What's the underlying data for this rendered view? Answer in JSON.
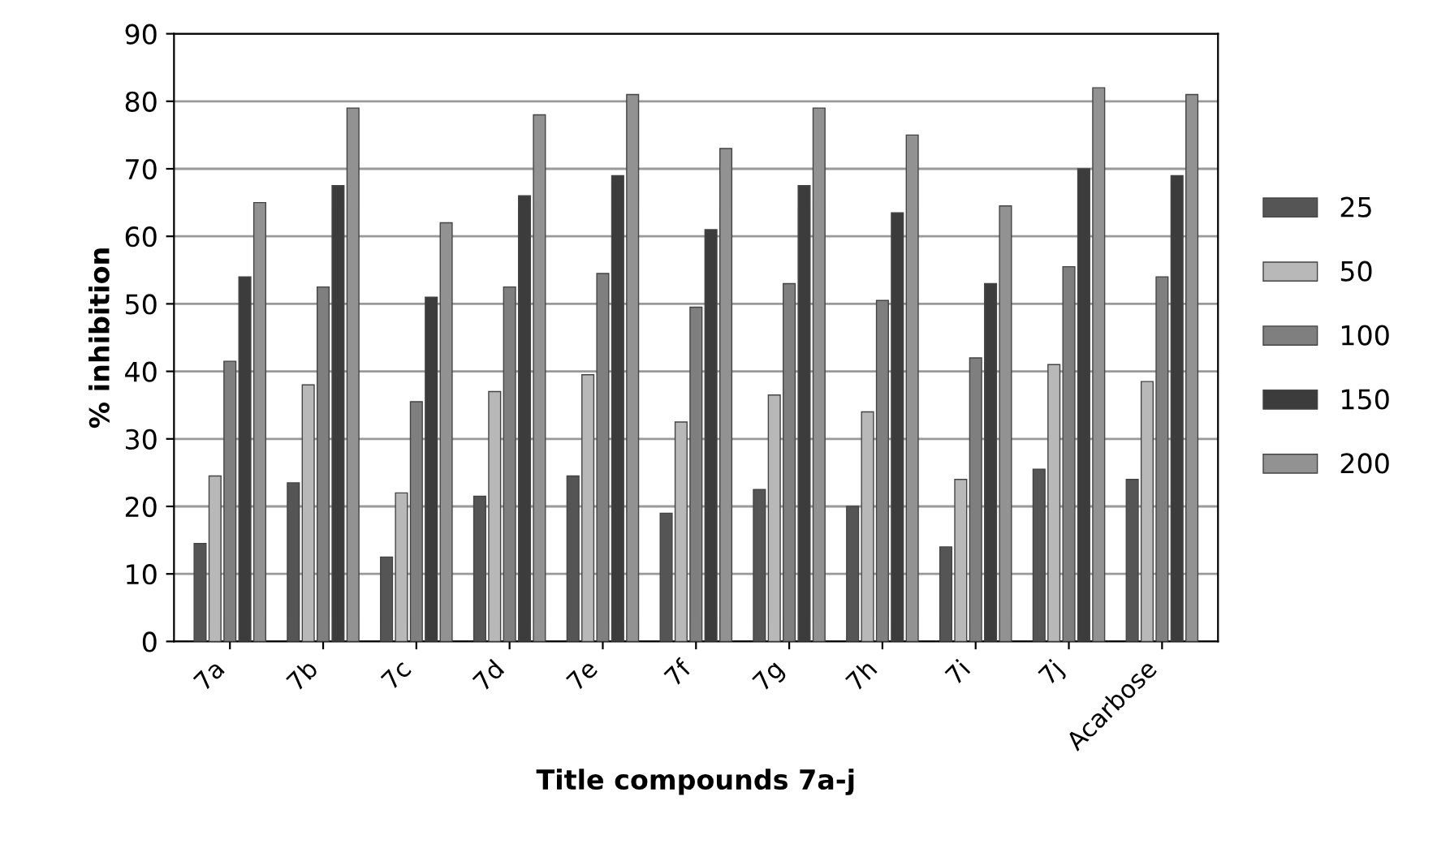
{
  "chart_data": {
    "type": "bar",
    "xlabel": "Title compounds 7a-j",
    "ylabel": "% inhibition",
    "categories": [
      "7a",
      "7b",
      "7c",
      "7d",
      "7e",
      "7f",
      "7g",
      "7h",
      "7i",
      "7j",
      "Acarbose"
    ],
    "series": [
      {
        "name": "25",
        "color": "#555555",
        "values": [
          14.5,
          23.5,
          12.5,
          21.5,
          24.5,
          19,
          22.5,
          20,
          14,
          25.5,
          24
        ]
      },
      {
        "name": "50",
        "color": "#b8b8b8",
        "values": [
          24.5,
          38,
          22,
          37,
          39.5,
          32.5,
          36.5,
          34,
          24,
          41,
          38.5
        ]
      },
      {
        "name": "100",
        "color": "#7f7f7f",
        "values": [
          41.5,
          52.5,
          35.5,
          52.5,
          54.5,
          49.5,
          53,
          50.5,
          42,
          55.5,
          54
        ]
      },
      {
        "name": "150",
        "color": "#3c3c3c",
        "values": [
          54,
          67.5,
          51,
          66,
          69,
          61,
          67.5,
          63.5,
          53,
          70,
          69
        ]
      },
      {
        "name": "200",
        "color": "#929292",
        "values": [
          65,
          79,
          62,
          78,
          81,
          73,
          79,
          75,
          64.5,
          82,
          81
        ]
      }
    ],
    "ylim": [
      0,
      90
    ],
    "yticks": [
      0,
      10,
      20,
      30,
      40,
      50,
      60,
      70,
      80,
      90
    ],
    "grid": "y",
    "legend": "right"
  }
}
